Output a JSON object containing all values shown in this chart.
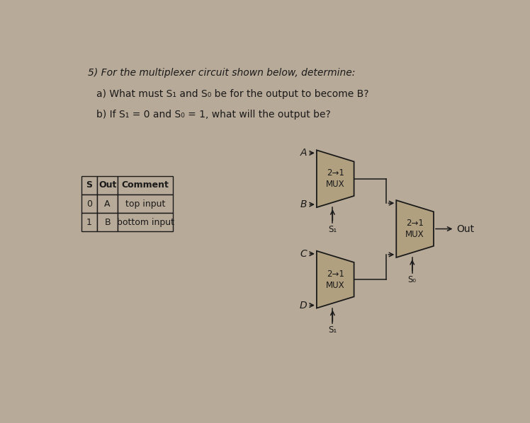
{
  "background_color": "#b8aa98",
  "mux_fill": "#b0a080",
  "title_line1": "5) For the multiplexer circuit shown below, determine:",
  "title_line2": "a) What must S₁ and S₀ be for the output to become B?",
  "title_line3": "b) If S₁ = 0 and S₀ = 1, what will the output be?",
  "table_headers": [
    "S",
    "Out",
    "Comment"
  ],
  "table_rows": [
    [
      "0",
      "A",
      "top input"
    ],
    [
      "1",
      "B",
      "bottom input"
    ]
  ],
  "line_color": "#1a1a1a",
  "text_color": "#1a1a1a"
}
